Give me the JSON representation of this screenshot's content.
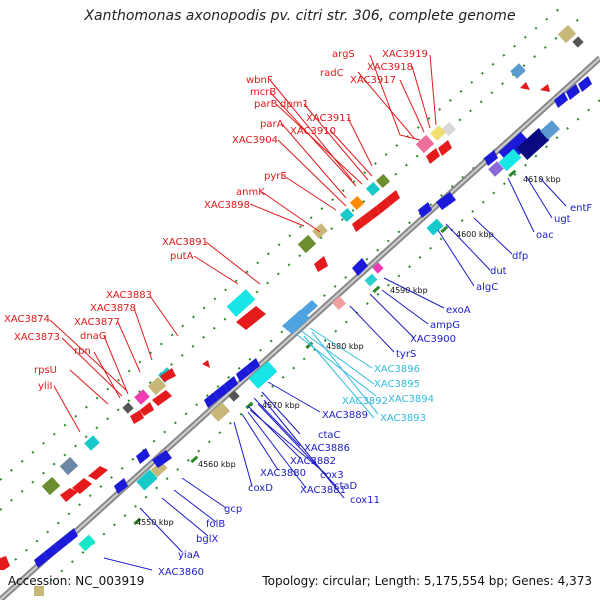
{
  "title": "Xanthomonas axonopodis pv. citri str. 306, complete genome",
  "footer": {
    "accession": "Accession: NC_003919",
    "stats": "Topology: circular; Length: 5,175,554 bp; Genes: 4,373"
  },
  "colors": {
    "label_red": "#e0191b",
    "label_blue": "#1c1cc8",
    "label_cyan": "#33bbdd",
    "backbone": "#999999",
    "tick": "#1a7a1a"
  },
  "ticks": [
    "4550 kbp",
    "4560 kbp",
    "4570 kbp",
    "4580 kbp",
    "4590 kbp",
    "4600 kbp",
    "4610 kbp"
  ],
  "labels_upper": [
    "argS",
    "XAC3919",
    "XAC3918",
    "radC",
    "XAC3917",
    "wbnF",
    "mcrB",
    "parB",
    "dpm1",
    "XAC3911",
    "parA",
    "XAC3910",
    "XAC3904",
    "pyrE",
    "anmK",
    "XAC3898",
    "XAC3891",
    "putA",
    "XAC3883",
    "XAC3878",
    "XAC3874",
    "XAC3877",
    "XAC3873",
    "dnaG",
    "rbn",
    "rpsU",
    "yliI"
  ],
  "labels_lower": [
    "entF",
    "ugt",
    "oac",
    "dfp",
    "dut",
    "algC",
    "exoA",
    "ampG",
    "XAC3900",
    "tyrS",
    "XAC3889",
    "ctaC",
    "XAC3886",
    "XAC3882",
    "cox3",
    "XAC3880",
    "ctaD",
    "XAC3881",
    "cox11",
    "coxD",
    "gcp",
    "folB",
    "bglX",
    "yiaA",
    "XAC3860"
  ],
  "labels_lower_cyan": [
    "XAC3896",
    "XAC3895",
    "XAC3892",
    "XAC3894",
    "XAC3893"
  ]
}
